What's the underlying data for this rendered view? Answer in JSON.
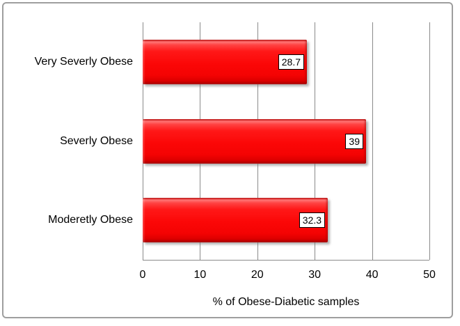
{
  "chart_data": {
    "type": "bar",
    "orientation": "horizontal",
    "title": "",
    "categories": [
      "Very Severly Obese",
      "Severly Obese",
      "Moderetly Obese"
    ],
    "values": [
      28.7,
      39,
      32.3
    ],
    "data_labels": [
      "28.7",
      "39",
      "32.3"
    ],
    "xlabel": "% of Obese-Diabetic samples",
    "ylabel": "",
    "x_ticks": [
      0,
      10,
      20,
      30,
      40,
      50
    ],
    "xlim": [
      0,
      50
    ],
    "grid": true,
    "legend_position": "none",
    "colors": {
      "bar": "#fa0a0a",
      "bar_highlight": "#ff7474",
      "bar_edge": "#a60000",
      "gridline": "#8a8a8a",
      "chart_border": "#9e9e9e",
      "data_label_bg": "#ffffff",
      "data_label_border": "#000000",
      "text": "#000000",
      "background": "#ffffff"
    }
  }
}
